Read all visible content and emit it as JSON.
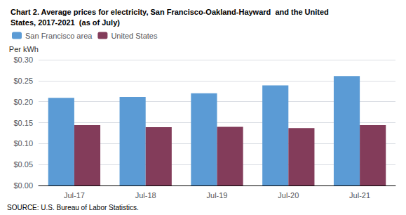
{
  "chart_data": {
    "type": "bar",
    "title": "Chart 2. Average prices for electricity, San Francisco-Oakland-Hayward  and the United\nStates, 2017-2021  (as of July)",
    "ylabel": "Per kWh",
    "annotations": [
      "SOURCE: U.S. Bureau of Labor Statistics."
    ],
    "categories": [
      "Jul-17",
      "Jul-18",
      "Jul-19",
      "Jul-20",
      "Jul-21"
    ],
    "series": [
      {
        "name": "San Francisco area",
        "color": "#5B9BD5",
        "values": [
          0.209,
          0.211,
          0.22,
          0.239,
          0.261
        ]
      },
      {
        "name": "United States",
        "color": "#833C5A",
        "values": [
          0.144,
          0.139,
          0.14,
          0.137,
          0.144
        ]
      }
    ],
    "ylim": [
      0.0,
      0.3
    ],
    "yticks": [
      {
        "value": 0.0,
        "label": "$0.00"
      },
      {
        "value": 0.05,
        "label": "$0.05"
      },
      {
        "value": 0.1,
        "label": "$0.10"
      },
      {
        "value": 0.15,
        "label": "$0.15"
      },
      {
        "value": 0.2,
        "label": "$0.20"
      },
      {
        "value": 0.25,
        "label": "$0.25"
      },
      {
        "value": 0.3,
        "label": "$0.30"
      }
    ],
    "grid": true,
    "legend": "upper left"
  }
}
